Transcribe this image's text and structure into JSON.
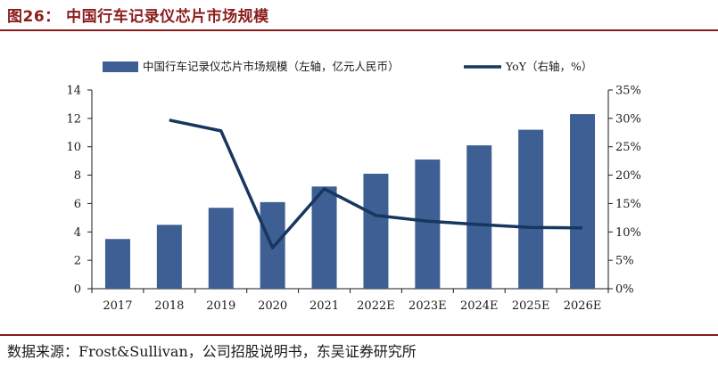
{
  "figure": {
    "title": "图26：  中国行车记录仪芯片市场规模",
    "source": "数据来源：Frost&Sullivan，公司招股说明书，东吴证券研究所"
  },
  "chart_data": {
    "type": "bar",
    "categories": [
      "2017",
      "2018",
      "2019",
      "2020",
      "2021",
      "2022E",
      "2023E",
      "2024E",
      "2025E",
      "2026E"
    ],
    "series": [
      {
        "name": "中国行车记录仪芯片市场规模（左轴，亿元人民币）",
        "type": "bar",
        "axis": "left",
        "color": "#3d5f93",
        "values": [
          3.5,
          4.5,
          5.7,
          6.1,
          7.2,
          8.1,
          9.1,
          10.1,
          11.2,
          12.3
        ]
      },
      {
        "name": "YoY（右轴，%）",
        "type": "line",
        "axis": "right",
        "color": "#17375e",
        "values": [
          null,
          29.7,
          27.8,
          7.2,
          17.6,
          12.9,
          11.9,
          11.3,
          10.8,
          10.7
        ]
      }
    ],
    "left_axis": {
      "min": 0,
      "max": 14,
      "ticks": [
        "0",
        "2",
        "4",
        "6",
        "8",
        "10",
        "12",
        "14"
      ]
    },
    "right_axis": {
      "min": 0,
      "max": 35,
      "ticks": [
        "0%",
        "5%",
        "10%",
        "15%",
        "20%",
        "25%",
        "30%",
        "35%"
      ]
    },
    "legend_position": "top",
    "grid": false
  }
}
